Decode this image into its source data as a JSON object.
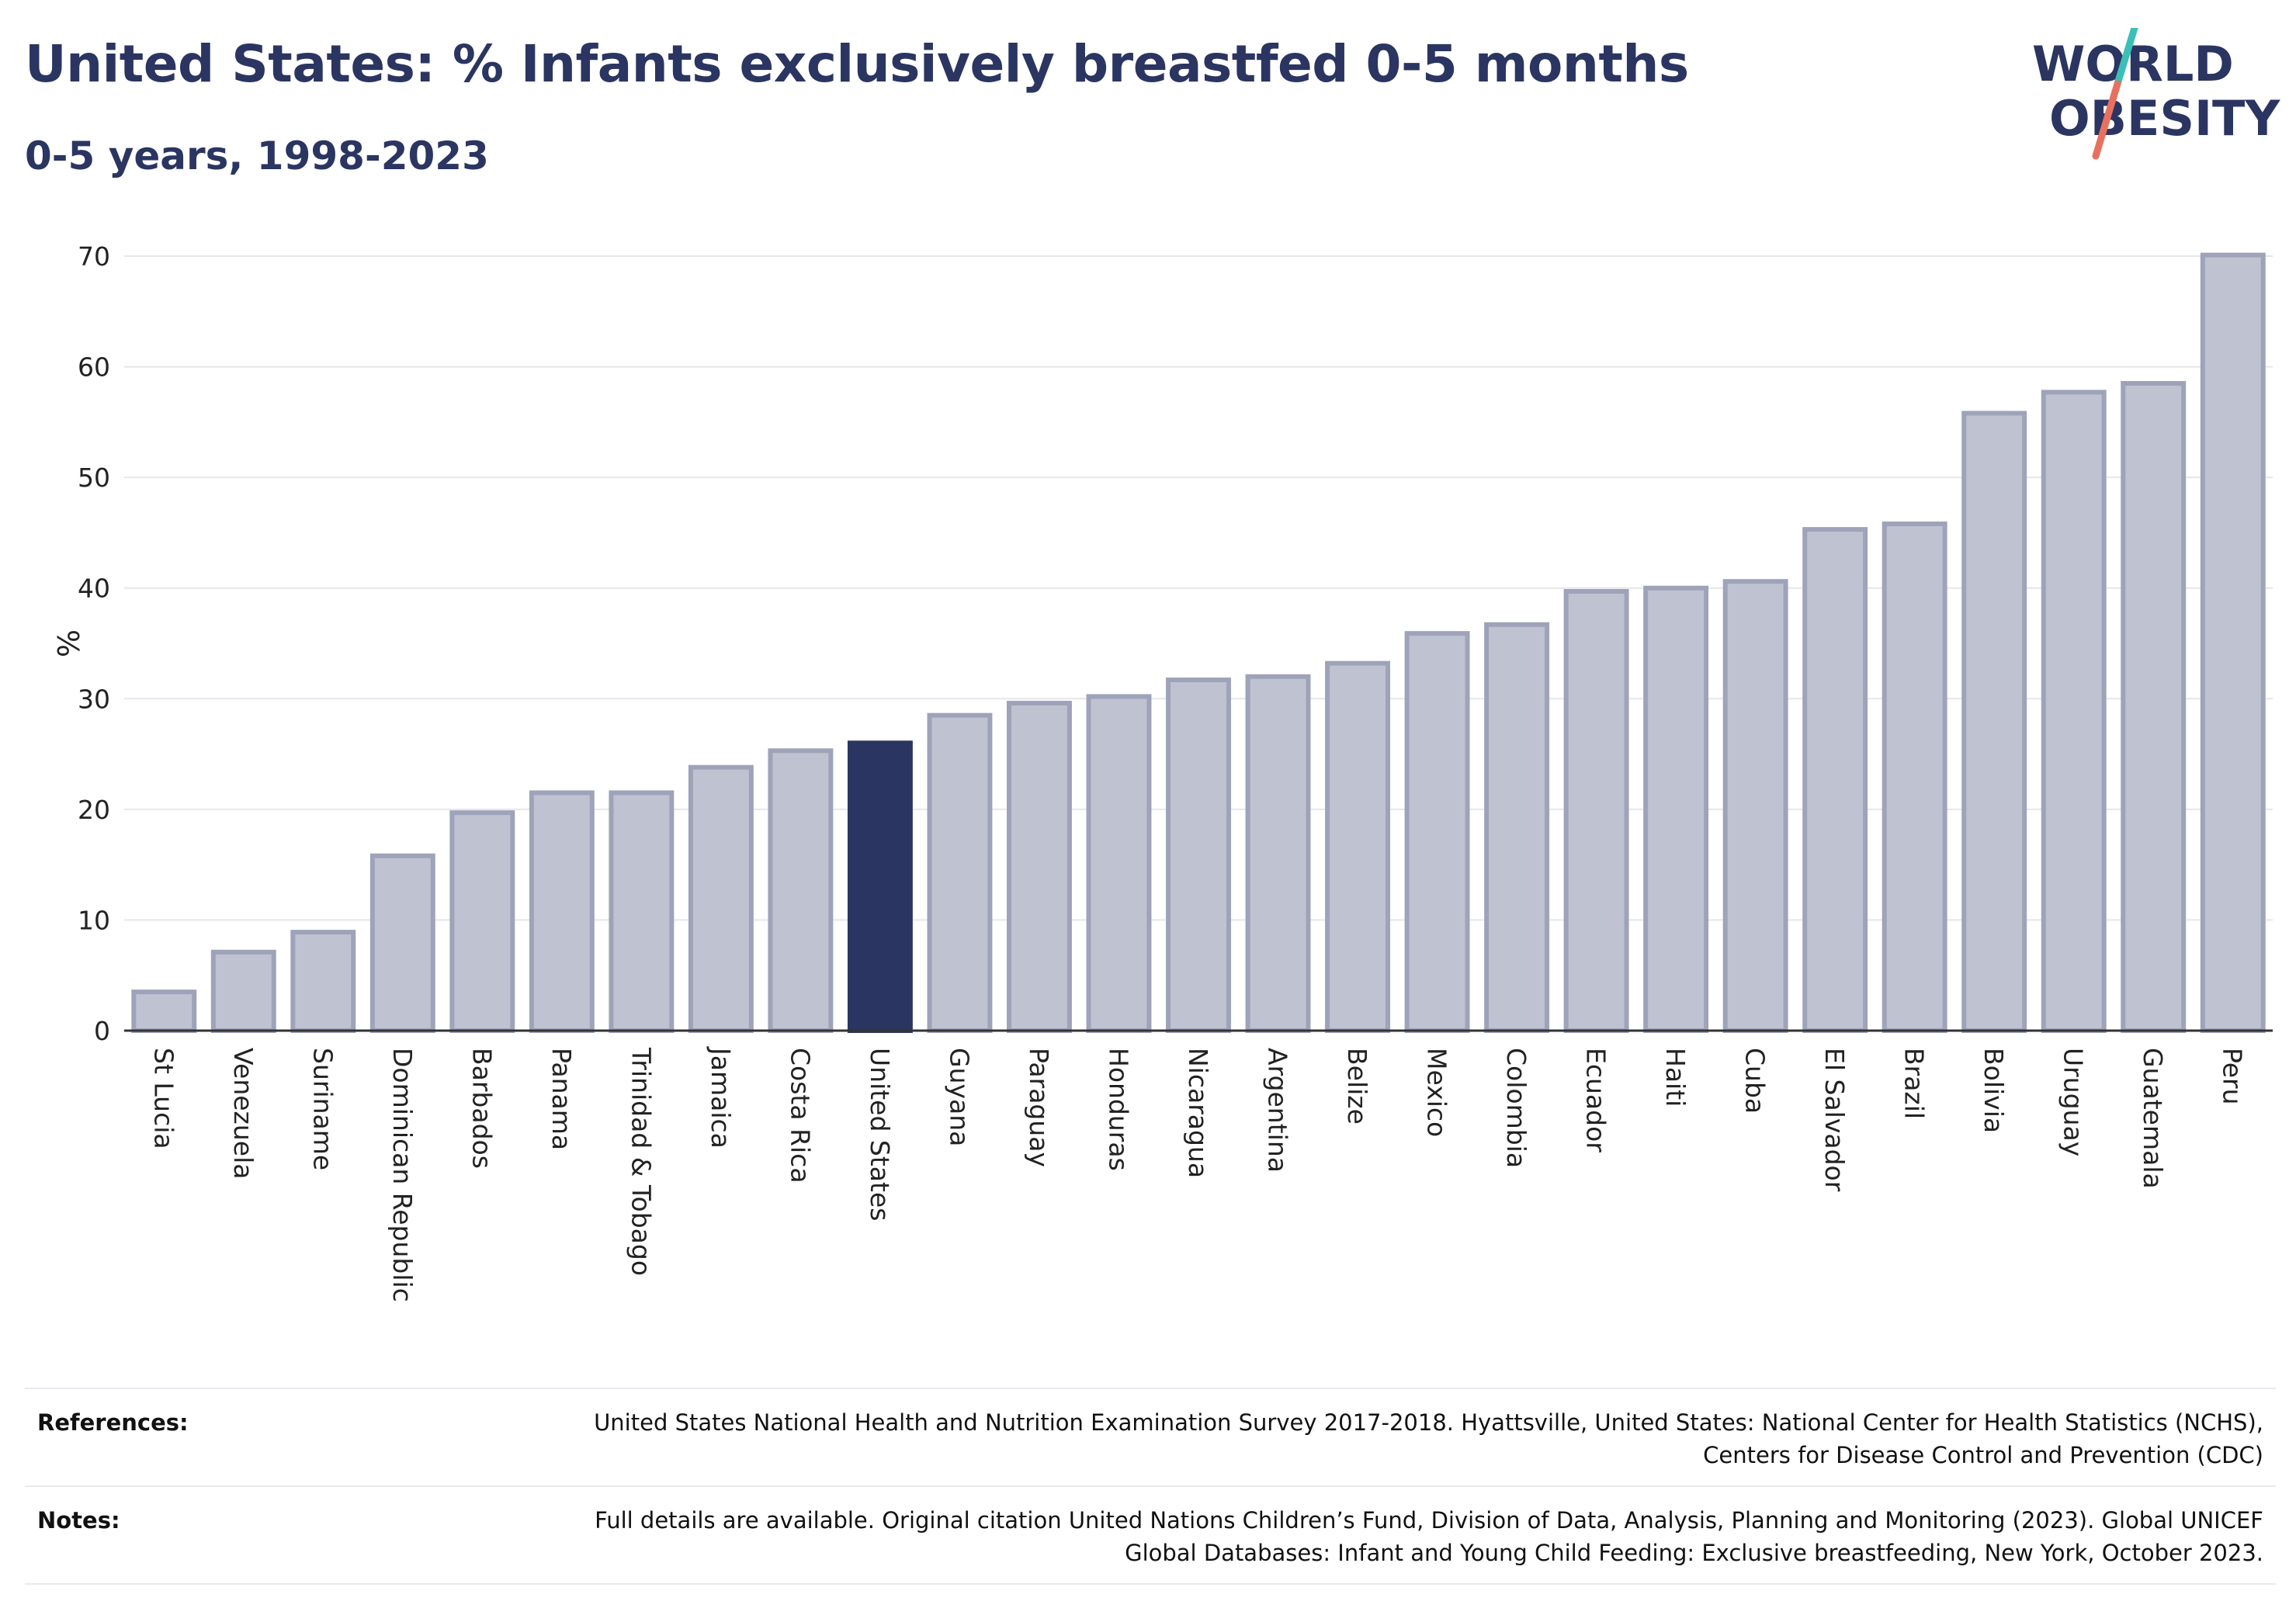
{
  "header": {
    "title": "United States: % Infants exclusively breastfed 0-5 months",
    "subtitle": "0-5 years, 1998-2023"
  },
  "logo": {
    "line1": "WORLD",
    "line2": "OBESITY",
    "accent_teal": "#3bbfb6",
    "accent_coral": "#e8705e"
  },
  "colors": {
    "highlight": "#2b3561",
    "bar_fill": "#bfc2d0",
    "bar_stroke": "#9ea3b9",
    "text": "#2b3561"
  },
  "chart_data": {
    "type": "bar",
    "ylabel": "%",
    "ylim": [
      0,
      70
    ],
    "yticks": [
      0,
      10,
      20,
      30,
      40,
      50,
      60,
      70
    ],
    "grid": true,
    "highlight": "United States",
    "categories": [
      "St Lucia",
      "Venezuela",
      "Suriname",
      "Dominican Republic",
      "Barbados",
      "Panama",
      "Trinidad & Tobago",
      "Jamaica",
      "Costa Rica",
      "United States",
      "Guyana",
      "Paraguay",
      "Honduras",
      "Nicaragua",
      "Argentina",
      "Belize",
      "Mexico",
      "Colombia",
      "Ecuador",
      "Haiti",
      "Cuba",
      "El Salvador",
      "Brazil",
      "Bolivia",
      "Uruguay",
      "Guatemala",
      "Peru"
    ],
    "values": [
      3.5,
      7.1,
      8.9,
      15.8,
      19.7,
      21.5,
      21.5,
      23.8,
      25.3,
      26.0,
      28.5,
      29.6,
      30.2,
      31.7,
      32.0,
      33.2,
      35.9,
      36.7,
      39.7,
      40.0,
      40.6,
      45.3,
      45.8,
      55.8,
      57.7,
      58.5,
      70.1
    ]
  },
  "footer": {
    "references_label": "References:",
    "references_text": "United States National Health and Nutrition Examination Survey 2017-2018. Hyattsville, United States: National Center for Health Statistics (NCHS), Centers for Disease Control and Prevention (CDC)",
    "notes_label": "Notes:",
    "notes_text": "Full details are available. Original citation United Nations Children’s Fund, Division of Data, Analysis, Planning and Monitoring (2023). Global UNICEF Global Databases: Infant and Young Child Feeding: Exclusive breastfeeding, New York, October 2023."
  }
}
